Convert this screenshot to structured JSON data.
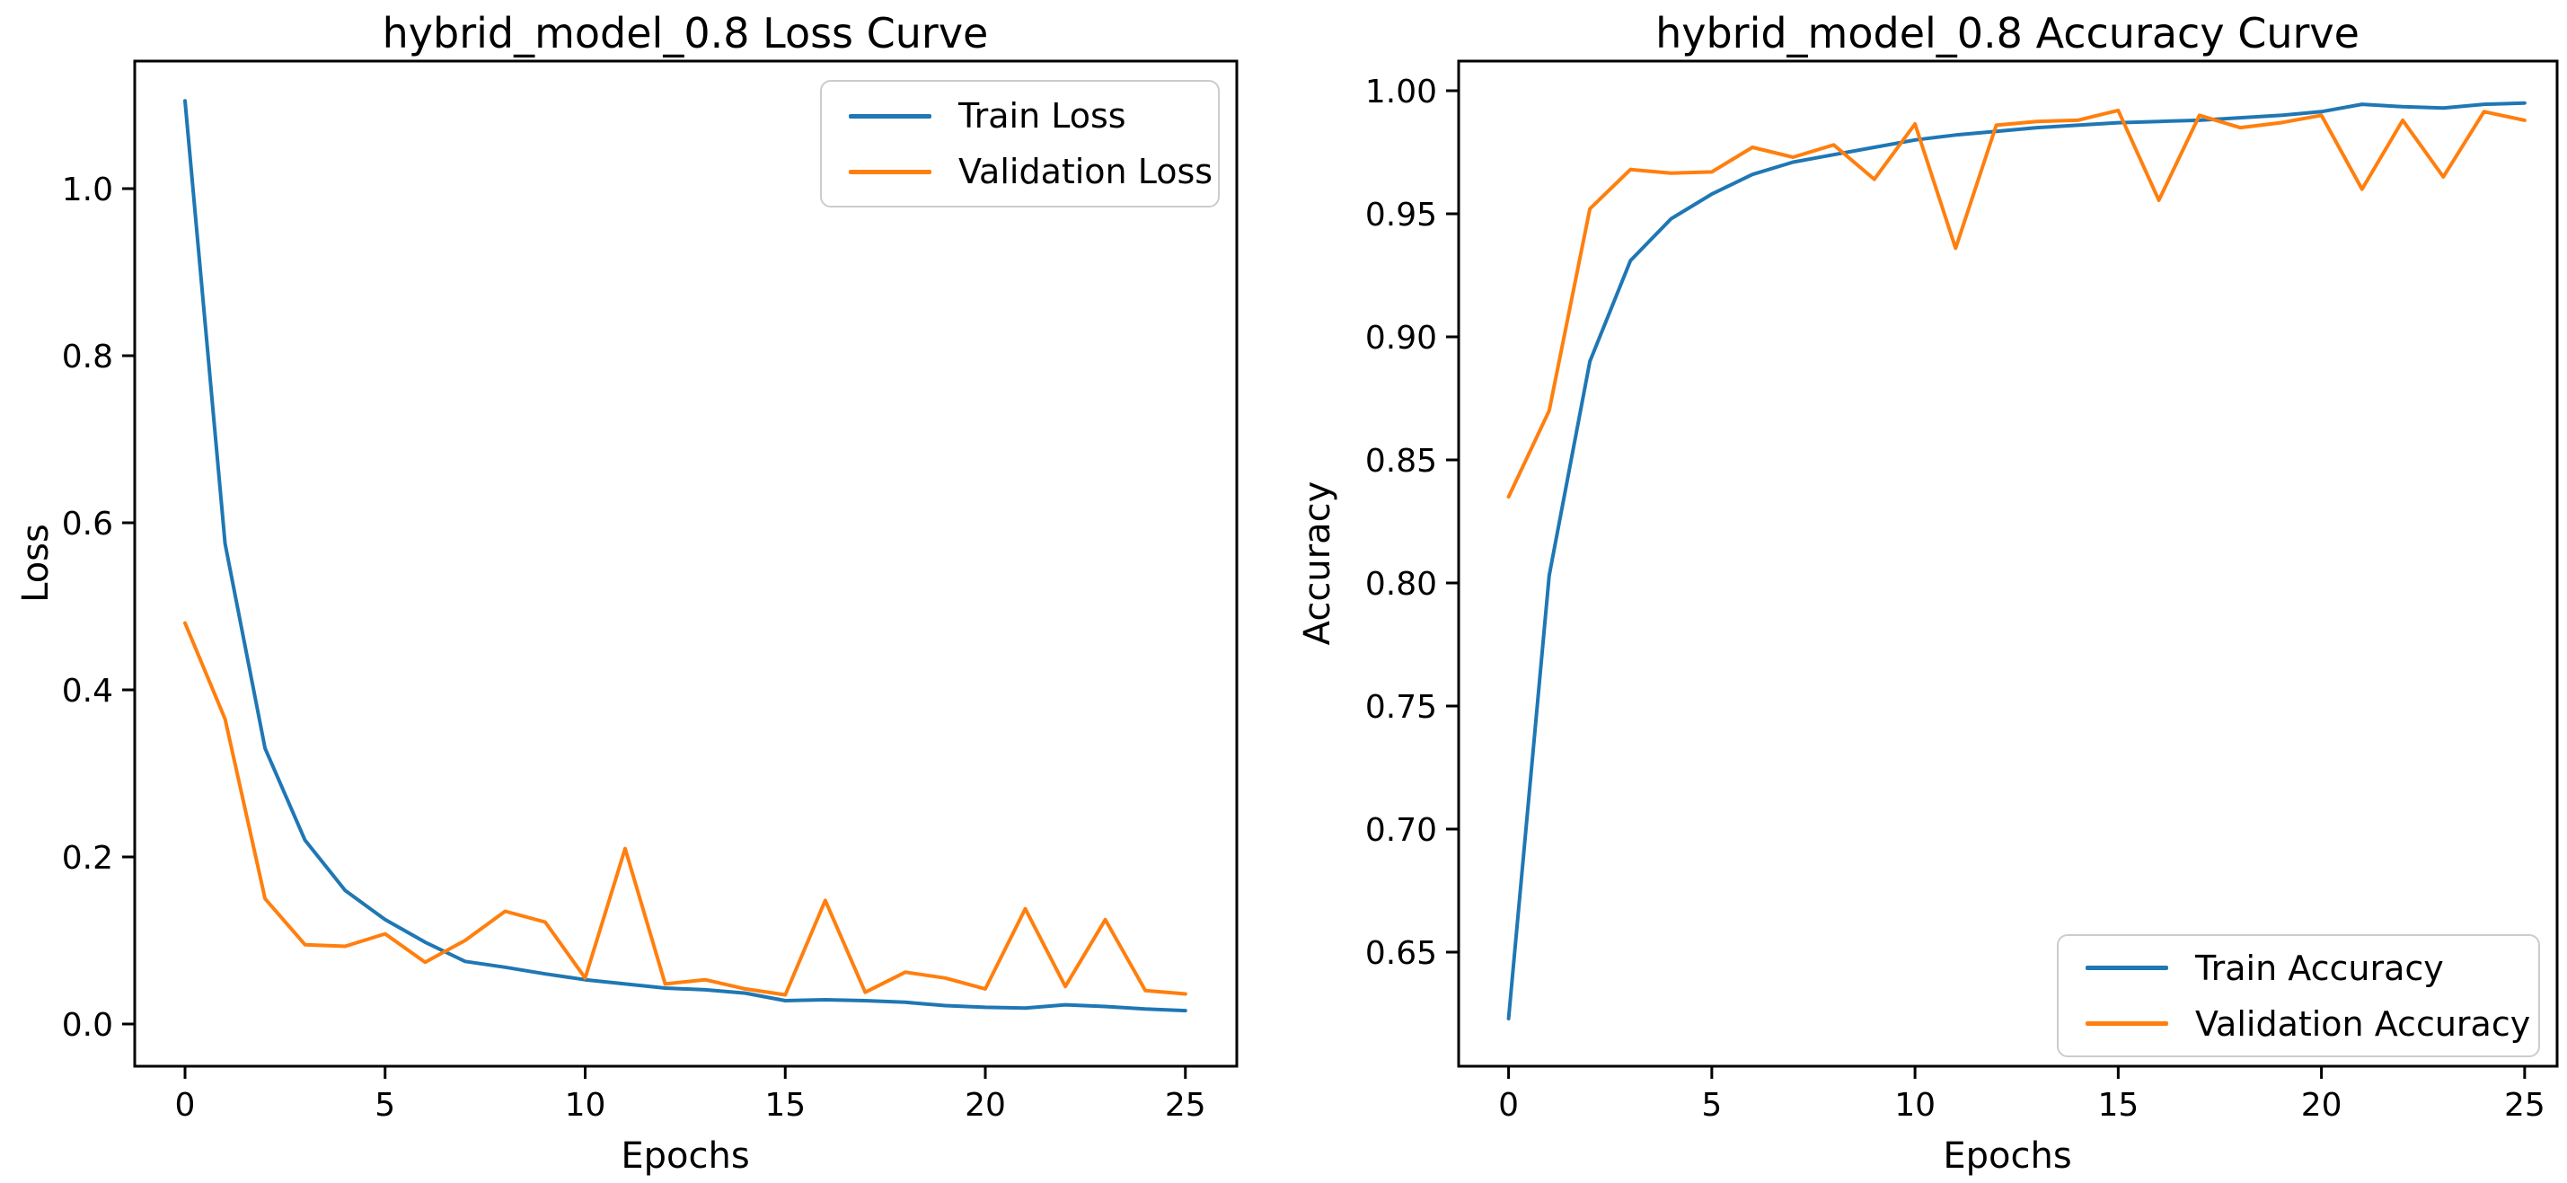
{
  "page": {
    "background": "#ffffff"
  },
  "colors": {
    "train": "#1f77b4",
    "validation": "#ff7f0e",
    "spine": "#000000",
    "legend_border": "#cccccc"
  },
  "chart_data": [
    {
      "type": "line",
      "title": "hybrid_model_0.8 Loss Curve",
      "xlabel": "Epochs",
      "ylabel": "Loss",
      "grid": false,
      "legend_position": "upper right",
      "xlim": [
        -1.25,
        26.3
      ],
      "ylim": [
        -0.05,
        1.155
      ],
      "x": [
        0,
        1,
        2,
        3,
        4,
        5,
        6,
        7,
        8,
        9,
        10,
        11,
        12,
        13,
        14,
        15,
        16,
        17,
        18,
        19,
        20,
        21,
        22,
        23,
        24,
        25
      ],
      "xticks": {
        "values": [
          0,
          5,
          10,
          15,
          20,
          25
        ],
        "labels": [
          "0",
          "5",
          "10",
          "15",
          "20",
          "25"
        ]
      },
      "yticks": {
        "values": [
          0.0,
          0.2,
          0.4,
          0.6,
          0.8,
          1.0
        ],
        "labels": [
          "0.0",
          "0.2",
          "0.4",
          "0.6",
          "0.8",
          "1.0"
        ]
      },
      "series": [
        {
          "name": "Train Loss",
          "color": "#1f77b4",
          "values": [
            1.105,
            0.575,
            0.33,
            0.22,
            0.16,
            0.125,
            0.098,
            0.075,
            0.068,
            0.06,
            0.053,
            0.048,
            0.043,
            0.041,
            0.037,
            0.028,
            0.029,
            0.028,
            0.026,
            0.022,
            0.02,
            0.019,
            0.023,
            0.021,
            0.018,
            0.016
          ]
        },
        {
          "name": "Validation Loss",
          "color": "#ff7f0e",
          "values": [
            0.48,
            0.365,
            0.15,
            0.095,
            0.093,
            0.108,
            0.074,
            0.1,
            0.135,
            0.122,
            0.055,
            0.21,
            0.048,
            0.053,
            0.042,
            0.035,
            0.148,
            0.038,
            0.062,
            0.055,
            0.042,
            0.138,
            0.045,
            0.125,
            0.04,
            0.036
          ]
        }
      ]
    },
    {
      "type": "line",
      "title": "hybrid_model_0.8 Accuracy Curve",
      "xlabel": "Epochs",
      "ylabel": "Accuracy",
      "grid": false,
      "legend_position": "lower right",
      "xlim": [
        -1.25,
        25.8
      ],
      "ylim": [
        0.603,
        1.006
      ],
      "x": [
        0,
        1,
        2,
        3,
        4,
        5,
        6,
        7,
        8,
        9,
        10,
        11,
        12,
        13,
        14,
        15,
        16,
        17,
        18,
        19,
        20,
        21,
        22,
        23,
        24,
        25
      ],
      "xticks": {
        "values": [
          0,
          5,
          10,
          15,
          20,
          25
        ],
        "labels": [
          "0",
          "5",
          "10",
          "15",
          "20",
          "25"
        ]
      },
      "yticks": {
        "values": [
          0.65,
          0.7,
          0.75,
          0.8,
          0.85,
          0.9,
          0.95,
          1.0
        ],
        "labels": [
          "0.65",
          "0.70",
          "0.75",
          "0.80",
          "0.85",
          "0.90",
          "0.95",
          "1.00"
        ]
      },
      "series": [
        {
          "name": "Train Accuracy",
          "color": "#1f77b4",
          "values": [
            0.623,
            0.803,
            0.89,
            0.931,
            0.948,
            0.958,
            0.966,
            0.971,
            0.974,
            0.977,
            0.98,
            0.982,
            0.9835,
            0.985,
            0.986,
            0.987,
            0.9875,
            0.988,
            0.989,
            0.99,
            0.9915,
            0.9945,
            0.9935,
            0.993,
            0.9945,
            0.995
          ]
        },
        {
          "name": "Validation Accuracy",
          "color": "#ff7f0e",
          "values": [
            0.835,
            0.87,
            0.952,
            0.968,
            0.9665,
            0.967,
            0.977,
            0.973,
            0.978,
            0.964,
            0.9865,
            0.936,
            0.986,
            0.9875,
            0.988,
            0.992,
            0.9555,
            0.99,
            0.985,
            0.987,
            0.99,
            0.96,
            0.988,
            0.965,
            0.9915,
            0.988
          ]
        }
      ]
    }
  ]
}
